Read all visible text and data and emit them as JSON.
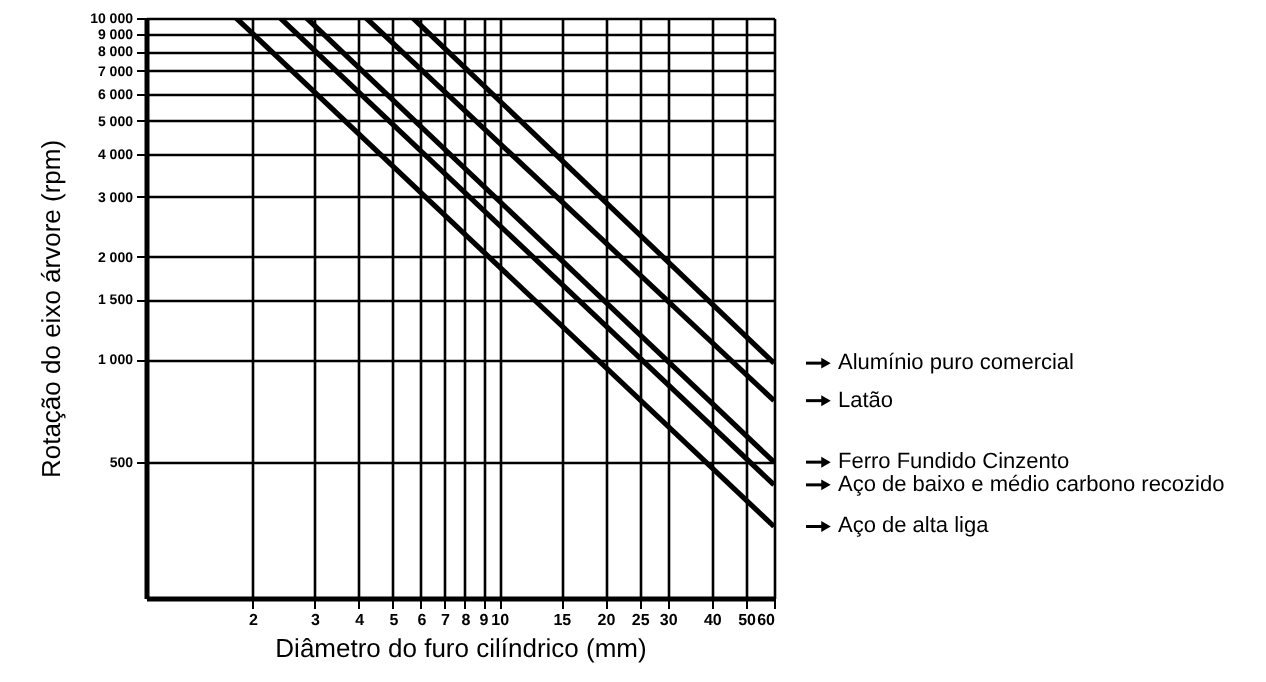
{
  "chart_data": {
    "type": "line",
    "xlabel": "Diâmetro do furo cilíndrico (mm)",
    "ylabel": "Rotação do eixo árvore (rpm)",
    "log": "xy",
    "grid": true,
    "legend": "right",
    "line_style": "solid",
    "marker": "none",
    "xlim": [
      1,
      60
    ],
    "ylim": [
      200,
      10000
    ],
    "xticks": [
      2,
      3,
      4,
      5,
      6,
      7,
      8,
      9,
      10,
      15,
      20,
      25,
      30,
      40,
      50,
      60
    ],
    "yticks": [
      {
        "value": 500,
        "label": "500"
      },
      {
        "value": 1000,
        "label": "1 000"
      },
      {
        "value": 1500,
        "label": "1 500"
      },
      {
        "value": 2000,
        "label": "2 000"
      },
      {
        "value": 3000,
        "label": "3 000"
      },
      {
        "value": 4000,
        "label": "4 000"
      },
      {
        "value": 5000,
        "label": "5 000"
      },
      {
        "value": 6000,
        "label": "6 000"
      },
      {
        "value": 7000,
        "label": "7 000"
      },
      {
        "value": 8000,
        "label": "8 000"
      },
      {
        "value": 9000,
        "label": "9 000"
      },
      {
        "value": 10000,
        "label": "10 000"
      }
    ],
    "series": [
      {
        "name": "Alumínio puro comercial",
        "color": "#000000",
        "x": [
          5.7,
          60
        ],
        "values": [
          10000,
          975
        ]
      },
      {
        "name": "Latão",
        "color": "#000000",
        "x": [
          4.2,
          60
        ],
        "values": [
          10000,
          757
        ]
      },
      {
        "name": "Ferro Fundido  Cinzento",
        "color": "#000000",
        "x": [
          2.85,
          60
        ],
        "values": [
          10000,
          500
        ]
      },
      {
        "name": "Aço de baixo e médio carbono recozido",
        "color": "#000000",
        "x": [
          2.4,
          60
        ],
        "values": [
          10000,
          429
        ]
      },
      {
        "name": "Aço de alta liga",
        "color": "#000000",
        "x": [
          1.8,
          60
        ],
        "values": [
          10000,
          324
        ]
      }
    ]
  }
}
